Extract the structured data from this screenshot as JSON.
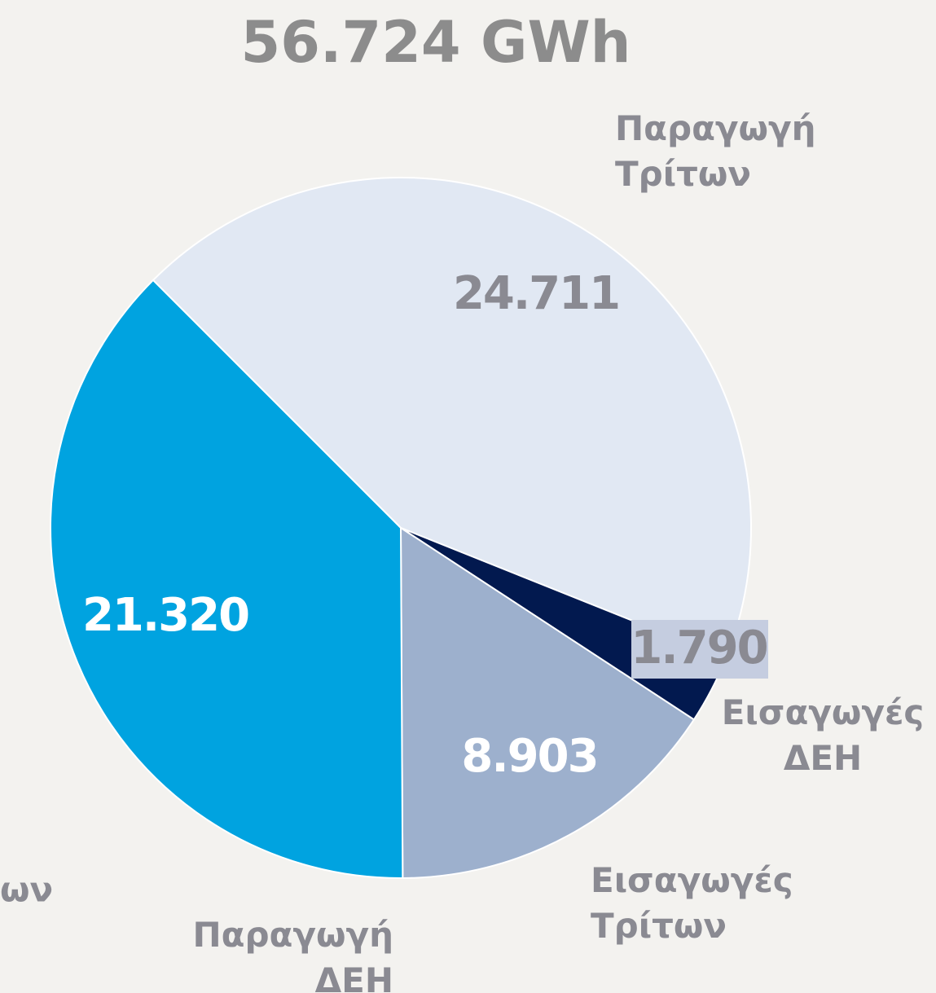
{
  "chart_data": {
    "type": "pie",
    "title": "56.724 GWh",
    "categories": [
      "Παραγωγή Τρίτων",
      "Εισαγωγές ΔΕΗ",
      "Εισαγωγές Τρίτων",
      "Παραγωγή ΔΕΗ"
    ],
    "values": [
      24711,
      1790,
      8903,
      21320
    ],
    "value_labels": [
      "24.711",
      "1.790",
      "8.903",
      "21.320"
    ],
    "colors": [
      "#e1e8f3",
      "#02194f",
      "#9db0cd",
      "#00a3e0"
    ],
    "annotations": [
      "ων"
    ]
  }
}
